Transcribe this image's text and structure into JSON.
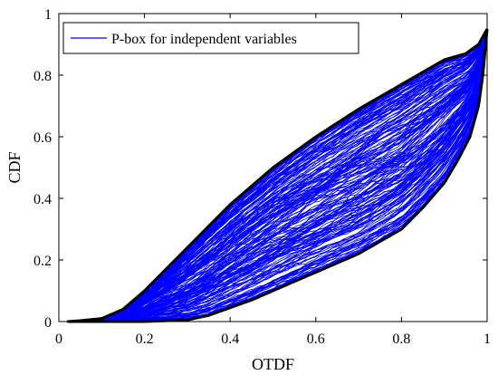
{
  "chart_data": {
    "type": "line",
    "title": "",
    "xlabel": "OTDF",
    "ylabel": "CDF",
    "xlim": [
      0,
      1
    ],
    "ylim": [
      0,
      1
    ],
    "xticks": [
      0,
      0.2,
      0.4,
      0.6,
      0.8,
      1
    ],
    "yticks": [
      0,
      0.2,
      0.4,
      0.6,
      0.8,
      1
    ],
    "xtick_labels": [
      "0",
      "0.2",
      "0.4",
      "0.6",
      "0.8",
      "1"
    ],
    "ytick_labels": [
      "0",
      "0.2",
      "0.4",
      "0.6",
      "0.8",
      "1"
    ],
    "grid": false,
    "legend": {
      "position": "top-left",
      "entries": [
        "P-box for independent variables"
      ]
    },
    "colors": {
      "ensemble": "#0000ff",
      "bounds": "#000000",
      "axes": "#000000"
    },
    "series": [
      {
        "name": "P-box for independent variables",
        "kind": "ensemble",
        "curve_count": 200,
        "x_range": [
          0.02,
          1
        ],
        "description_of_band": "many CDF curves lying between the lower and upper bounds"
      },
      {
        "kind": "upper-bound",
        "x": [
          0.02,
          0.05,
          0.1,
          0.15,
          0.2,
          0.25,
          0.3,
          0.35,
          0.4,
          0.45,
          0.5,
          0.55,
          0.6,
          0.65,
          0.7,
          0.75,
          0.8,
          0.85,
          0.9,
          0.95,
          0.98,
          1.0
        ],
        "y": [
          0.0,
          0.003,
          0.01,
          0.04,
          0.1,
          0.17,
          0.24,
          0.31,
          0.38,
          0.44,
          0.5,
          0.55,
          0.6,
          0.645,
          0.69,
          0.73,
          0.77,
          0.81,
          0.85,
          0.87,
          0.9,
          0.95
        ]
      },
      {
        "kind": "lower-bound",
        "x": [
          0.02,
          0.1,
          0.2,
          0.3,
          0.35,
          0.4,
          0.45,
          0.5,
          0.55,
          0.6,
          0.65,
          0.7,
          0.75,
          0.8,
          0.85,
          0.9,
          0.93,
          0.96,
          0.98,
          0.99,
          1.0
        ],
        "y": [
          0.0,
          0.0,
          0.0,
          0.005,
          0.02,
          0.045,
          0.07,
          0.1,
          0.13,
          0.16,
          0.19,
          0.22,
          0.26,
          0.3,
          0.37,
          0.45,
          0.52,
          0.6,
          0.7,
          0.8,
          0.95
        ]
      }
    ]
  }
}
